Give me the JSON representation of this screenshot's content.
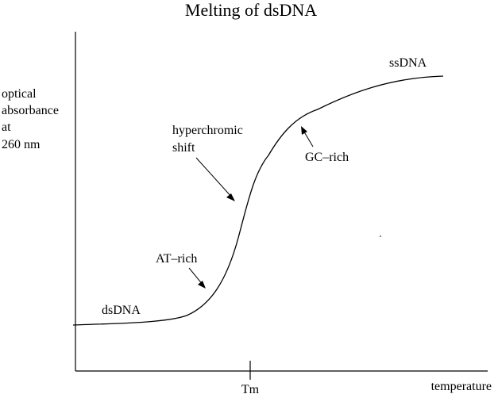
{
  "title": "Melting of dsDNA",
  "y_axis_label_lines": [
    "optical",
    "absorbance",
    "at",
    "260 nm"
  ],
  "x_axis_label": "temperature",
  "x_tick_label": "Tm",
  "annotations": {
    "ssdna": "ssDNA",
    "dsdna": "dsDNA",
    "hyperchromic_line1": "hyperchromic",
    "hyperchromic_line2": "shift",
    "gc_rich": "GC–rich",
    "at_rich": "AT–rich"
  }
}
